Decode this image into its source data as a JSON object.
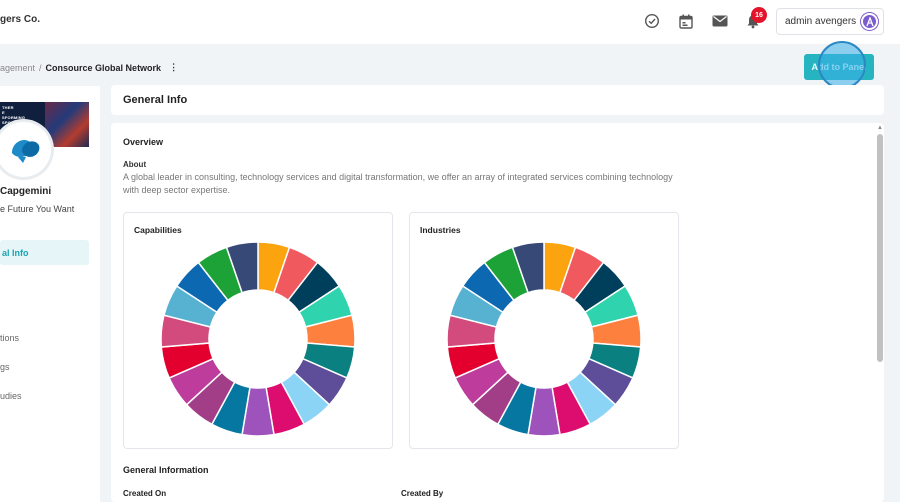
{
  "header": {
    "brand": "gers Co.",
    "notification_count": "16",
    "user_name": "admin avengers"
  },
  "breadcrumb": {
    "parent": "agement",
    "separator": "/",
    "current": "Consource Global Network",
    "more": "⋮"
  },
  "actions": {
    "add_to_panel": "Add to Panel"
  },
  "profile": {
    "banner_text": "THER\nE\nSFORMING\nSPORT",
    "company": "Capgemini",
    "tagline": "e Future You Want"
  },
  "nav": {
    "active": "al Info",
    "items": [
      "tions",
      "gs",
      "udies"
    ]
  },
  "main": {
    "title": "General Info",
    "overview_title": "Overview",
    "about_label": "About",
    "about_text": "A global leader in consulting, technology services and digital transformation, we offer an array of integrated services combining technology with deep sector expertise.",
    "capabilities_title": "Capabilities",
    "industries_title": "Industries",
    "general_information_title": "General Information",
    "created_on_label": "Created On",
    "created_by_label": "Created By"
  },
  "colors": {
    "accent": "#26b4c1",
    "badge": "#e3152b",
    "segments": [
      "#fca40f",
      "#f05a5e",
      "#003f5c",
      "#2fd3ad",
      "#fd803f",
      "#0b8080",
      "#5e4e9a",
      "#8bd4f6",
      "#dd0c6f",
      "#9e52bb",
      "#0677a0",
      "#a13e87",
      "#bd3c9c",
      "#e3002f",
      "#d24b7c",
      "#57b2d1",
      "#0d68b2",
      "#1ca236",
      "#364977"
    ]
  },
  "icons": {
    "tasks": "check-circle-icon",
    "calendar": "calendar-icon",
    "mail": "envelope-icon",
    "bell": "bell-icon",
    "kebab": "kebab-menu-icon",
    "logo": "capgemini-spade-logo",
    "scroll_up": "caret-up-icon"
  }
}
